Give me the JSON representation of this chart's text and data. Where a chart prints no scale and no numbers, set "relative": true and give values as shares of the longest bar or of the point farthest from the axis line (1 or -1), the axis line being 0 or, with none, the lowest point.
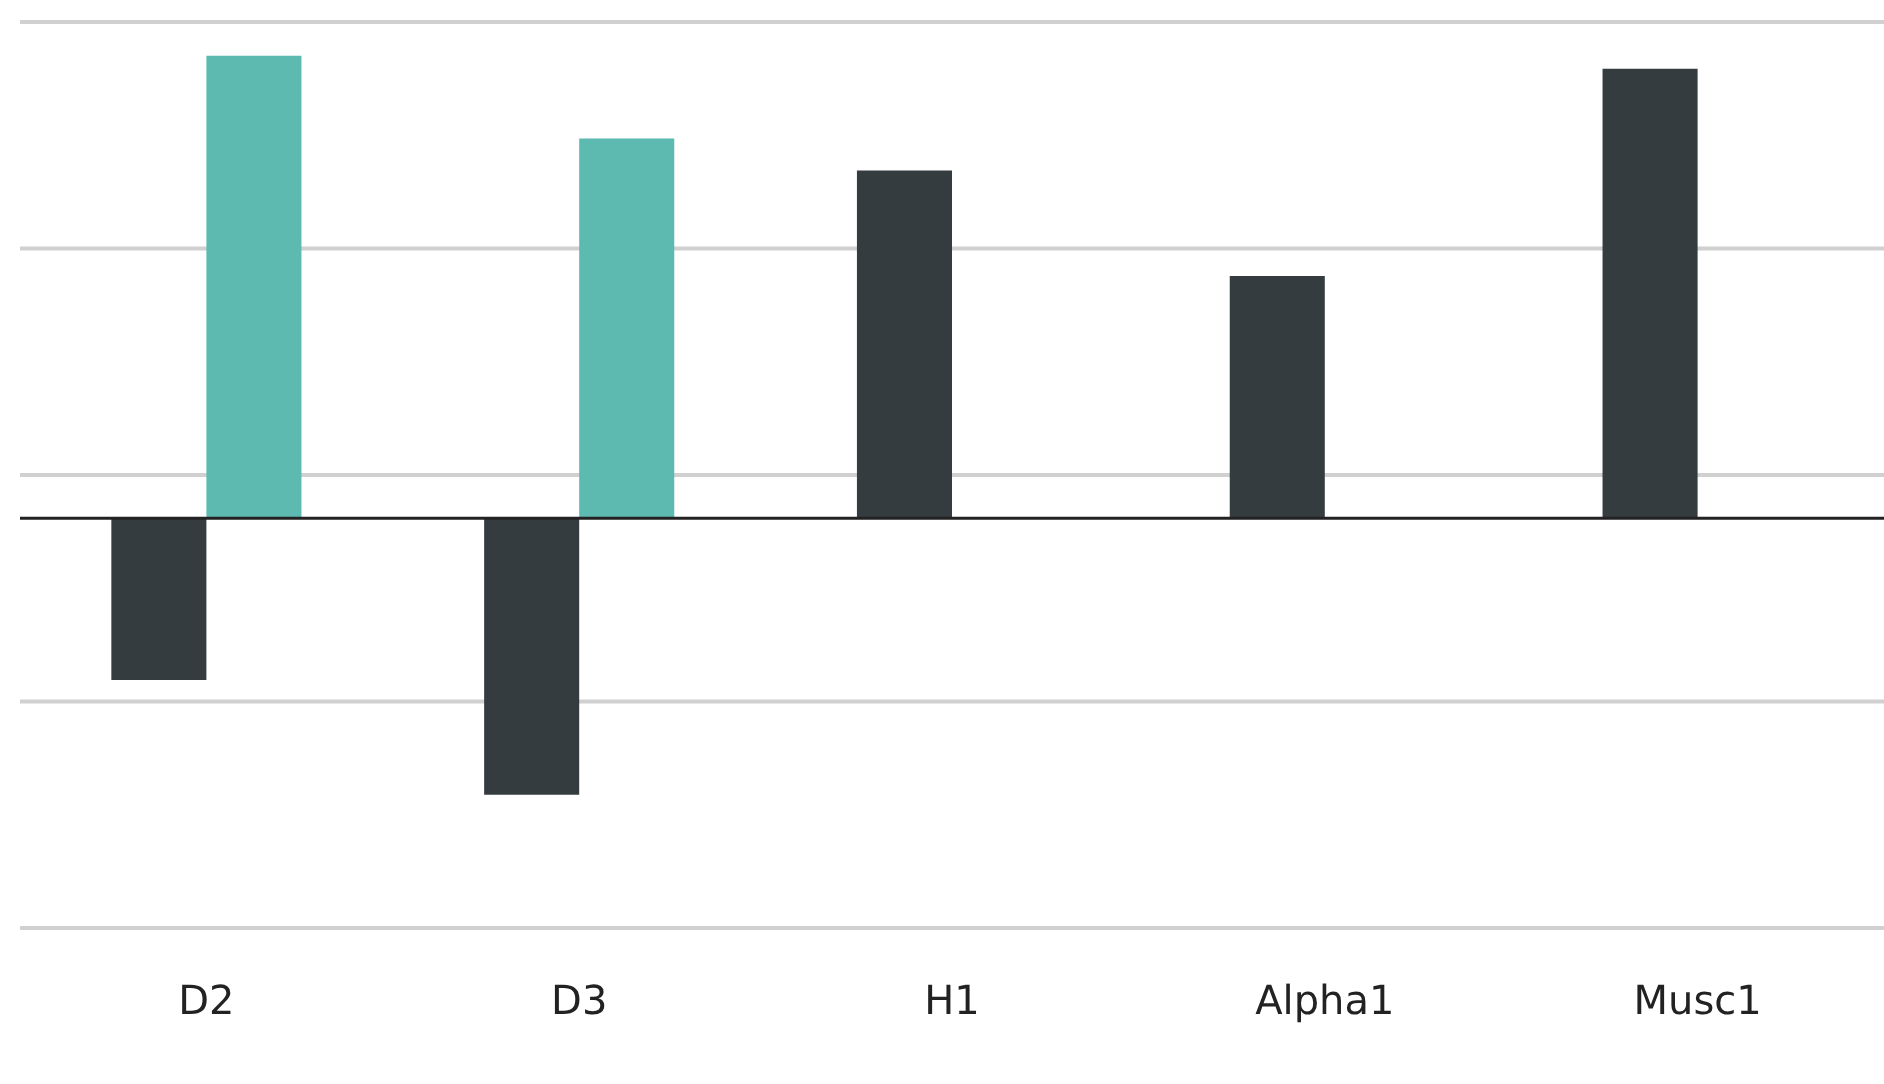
{
  "chart_data": {
    "type": "bar",
    "relative": true,
    "grid": "y",
    "categories": [
      "D2",
      "D3",
      "H1",
      "Alpha1",
      "Musc1"
    ],
    "series": [
      {
        "color": "#343c40",
        "values": [
          -0.35,
          -0.598,
          0.752,
          0.524,
          0.972
        ]
      },
      {
        "color": "#5dbab1",
        "values": [
          1,
          0.821,
          null,
          null,
          null
        ]
      }
    ]
  }
}
